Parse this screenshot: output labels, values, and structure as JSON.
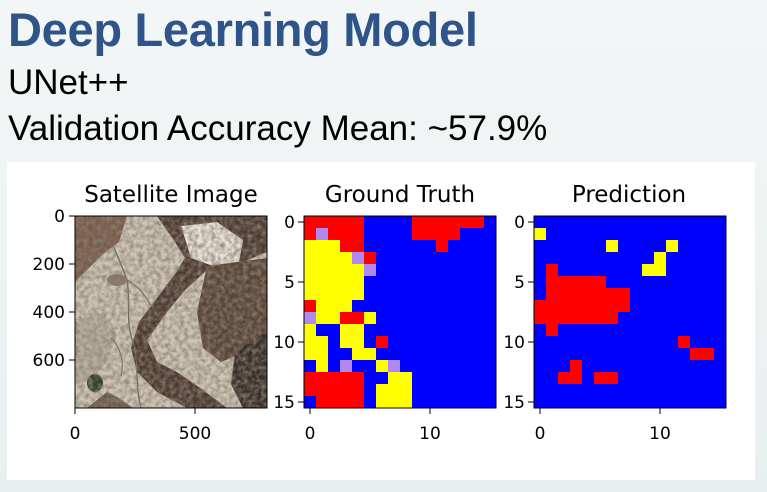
{
  "header": {
    "title": "Deep Learning Model",
    "model_name": "UNet++",
    "accuracy_text": "Validation Accuracy Mean: ~57.9%"
  },
  "figure": {
    "panels": [
      {
        "id": "satellite",
        "title": "Satellite Image",
        "x_ticks": [
          "0",
          "500"
        ],
        "y_ticks": [
          "0",
          "200",
          "400",
          "600"
        ]
      },
      {
        "id": "ground_truth",
        "title": "Ground Truth",
        "x_ticks": [
          "0",
          "10"
        ],
        "y_ticks": [
          "0",
          "5",
          "10",
          "15"
        ]
      },
      {
        "id": "prediction",
        "title": "Prediction",
        "x_ticks": [
          "0",
          "10"
        ],
        "y_ticks": [
          "0",
          "5",
          "10",
          "15"
        ]
      }
    ],
    "colors": {
      "0": "#0000ff",
      "1": "#ff0000",
      "2": "#ffff00",
      "3": "#b088f0"
    },
    "ground_truth_grid": [
      "1111100001111110",
      "1311100001111000",
      "2221100000010000",
      "2222310000000000",
      "2222230000000000",
      "2222200000000000",
      "2222200000000000",
      "1222000000000000",
      "3221120000000000",
      "2002200000000000",
      "2202201000000000",
      "2200220000000000",
      "0203002300000000",
      "1111100220000000",
      "1111102220000000",
      "0111102220000000"
    ],
    "prediction_grid": [
      "0000000000000000",
      "2000000000000000",
      "0000002000020000",
      "0000000000200000",
      "0100000002200000",
      "0111110000000000",
      "0111111100000000",
      "1111111100000000",
      "1111111000000000",
      "0100000000000000",
      "0000000000001000",
      "0000000000000110",
      "0001000000000000",
      "0011011000000000",
      "0000000000000000",
      "0000000000000000"
    ]
  }
}
